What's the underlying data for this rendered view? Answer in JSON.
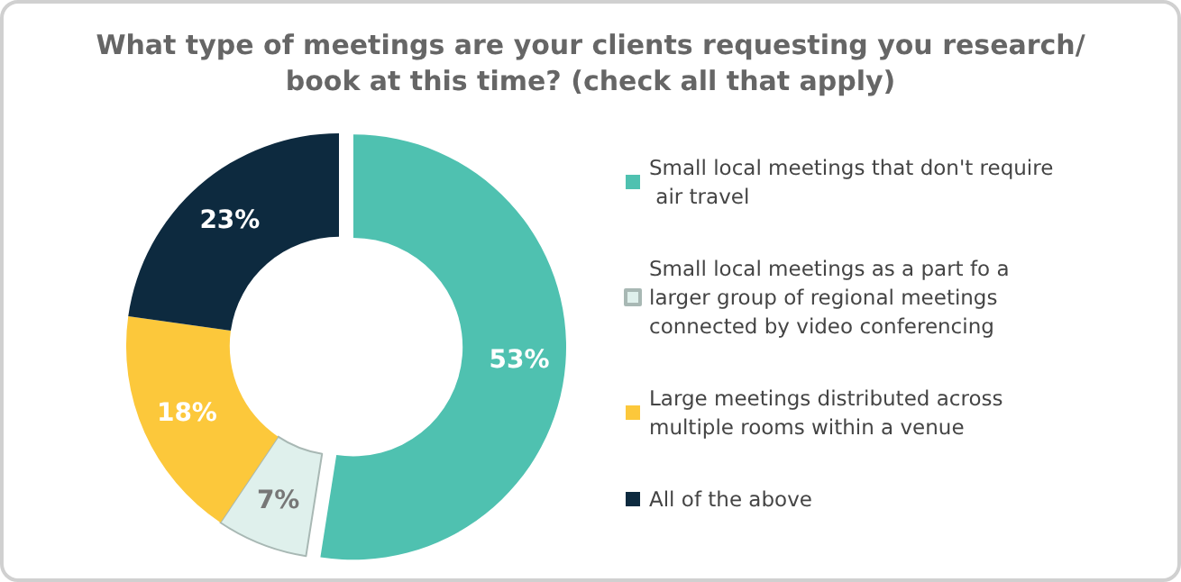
{
  "chart_data": {
    "type": "donut",
    "title": "What type of meetings are your clients requesting you research/book at this time? (check all that apply)",
    "categories": [
      "Small local meetings that don't require air travel",
      "Small local meetings as a part fo a larger group of regional meetings connected by video conferencing",
      "Large meetings distributed across multiple rooms within a venue",
      "All of the above"
    ],
    "values": [
      53,
      7,
      18,
      23
    ],
    "colors": [
      "#4fc1b0",
      "#dff0ec",
      "#fcc83b",
      "#0d2a3f"
    ],
    "value_labels": [
      "53%",
      "7%",
      "18%",
      "23%"
    ],
    "legend": "right"
  }
}
